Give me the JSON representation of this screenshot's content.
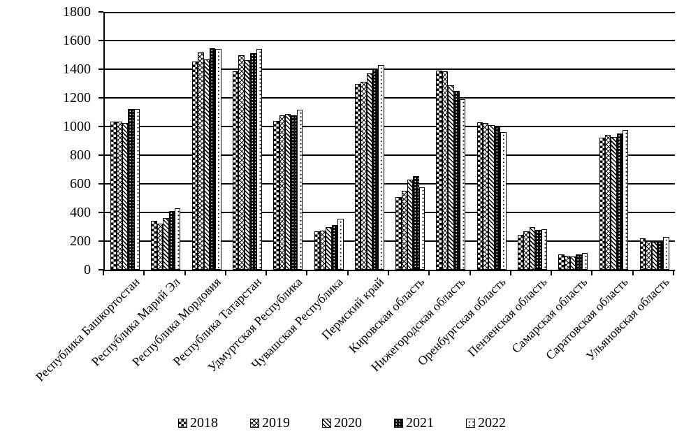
{
  "chart_data": {
    "type": "bar",
    "title": "",
    "xlabel": "",
    "ylabel": "",
    "categories": [
      "Республика Башкортостан",
      "Республика Марий Эл",
      "Республика Мордовия",
      "Республика Татарстан",
      "Удмуртская Республика",
      "Чувашская Республика",
      "Пермский край",
      "Кировская область",
      "Нижегородская область",
      "Оренбургская область",
      "Пензенская область",
      "Самарская область",
      "Саратовская область",
      "Ульяновская область"
    ],
    "series": [
      {
        "name": "2018",
        "pattern": "checkerboard",
        "values": [
          1035,
          340,
          1455,
          1385,
          1040,
          270,
          1300,
          505,
          1390,
          1030,
          245,
          105,
          920,
          220
        ]
      },
      {
        "name": "2019",
        "pattern": "diamond-lattice",
        "values": [
          1035,
          320,
          1515,
          1500,
          1080,
          275,
          1310,
          550,
          1385,
          1025,
          270,
          100,
          940,
          200
        ]
      },
      {
        "name": "2020",
        "pattern": "diagonal-stripes",
        "values": [
          1025,
          360,
          1470,
          1465,
          1090,
          300,
          1370,
          630,
          1290,
          1010,
          300,
          95,
          925,
          195
        ]
      },
      {
        "name": "2021",
        "pattern": "black-white-dots",
        "values": [
          1120,
          410,
          1545,
          1510,
          1080,
          310,
          1405,
          655,
          1250,
          1000,
          280,
          105,
          950,
          200
        ]
      },
      {
        "name": "2022",
        "pattern": "white-black-dots",
        "values": [
          1120,
          430,
          1540,
          1540,
          1115,
          355,
          1430,
          575,
          1190,
          960,
          285,
          115,
          975,
          230
        ]
      }
    ],
    "ylim": [
      0,
      1800
    ],
    "ytick_step": 200,
    "ytick_labels": [
      "0",
      "200",
      "400",
      "600",
      "800",
      "1000",
      "1200",
      "1400",
      "1600",
      "1800"
    ],
    "grid": "horizontal",
    "legend_position": "bottom",
    "colors": {
      "foreground": "#000000",
      "background": "#ffffff"
    }
  }
}
